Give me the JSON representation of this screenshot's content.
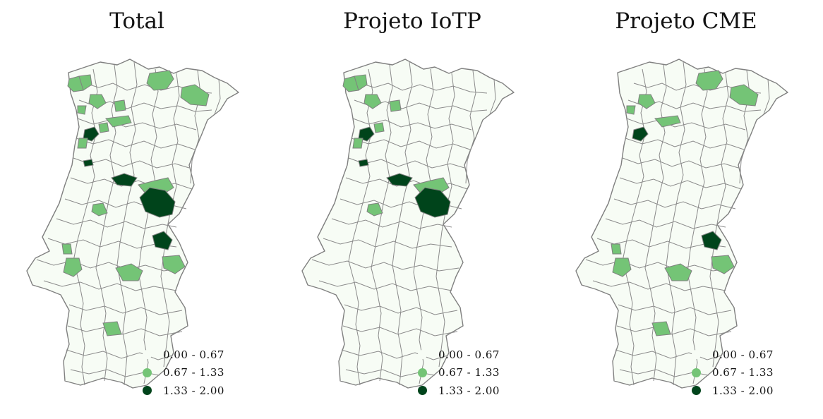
{
  "colors": {
    "bin_low": "#f7fcf5",
    "bin_mid": "#74c476",
    "bin_high": "#00441b",
    "border": "#808080"
  },
  "legend": [
    {
      "label": "0.00 - 0.67",
      "color": "#f7fcf5"
    },
    {
      "label": "0.67 - 1.33",
      "color": "#74c476"
    },
    {
      "label": "1.33 - 2.00",
      "color": "#00441b"
    }
  ],
  "panels": [
    {
      "title": "Total"
    },
    {
      "title": "Projeto IoTP"
    },
    {
      "title": "Projeto CME"
    }
  ]
}
